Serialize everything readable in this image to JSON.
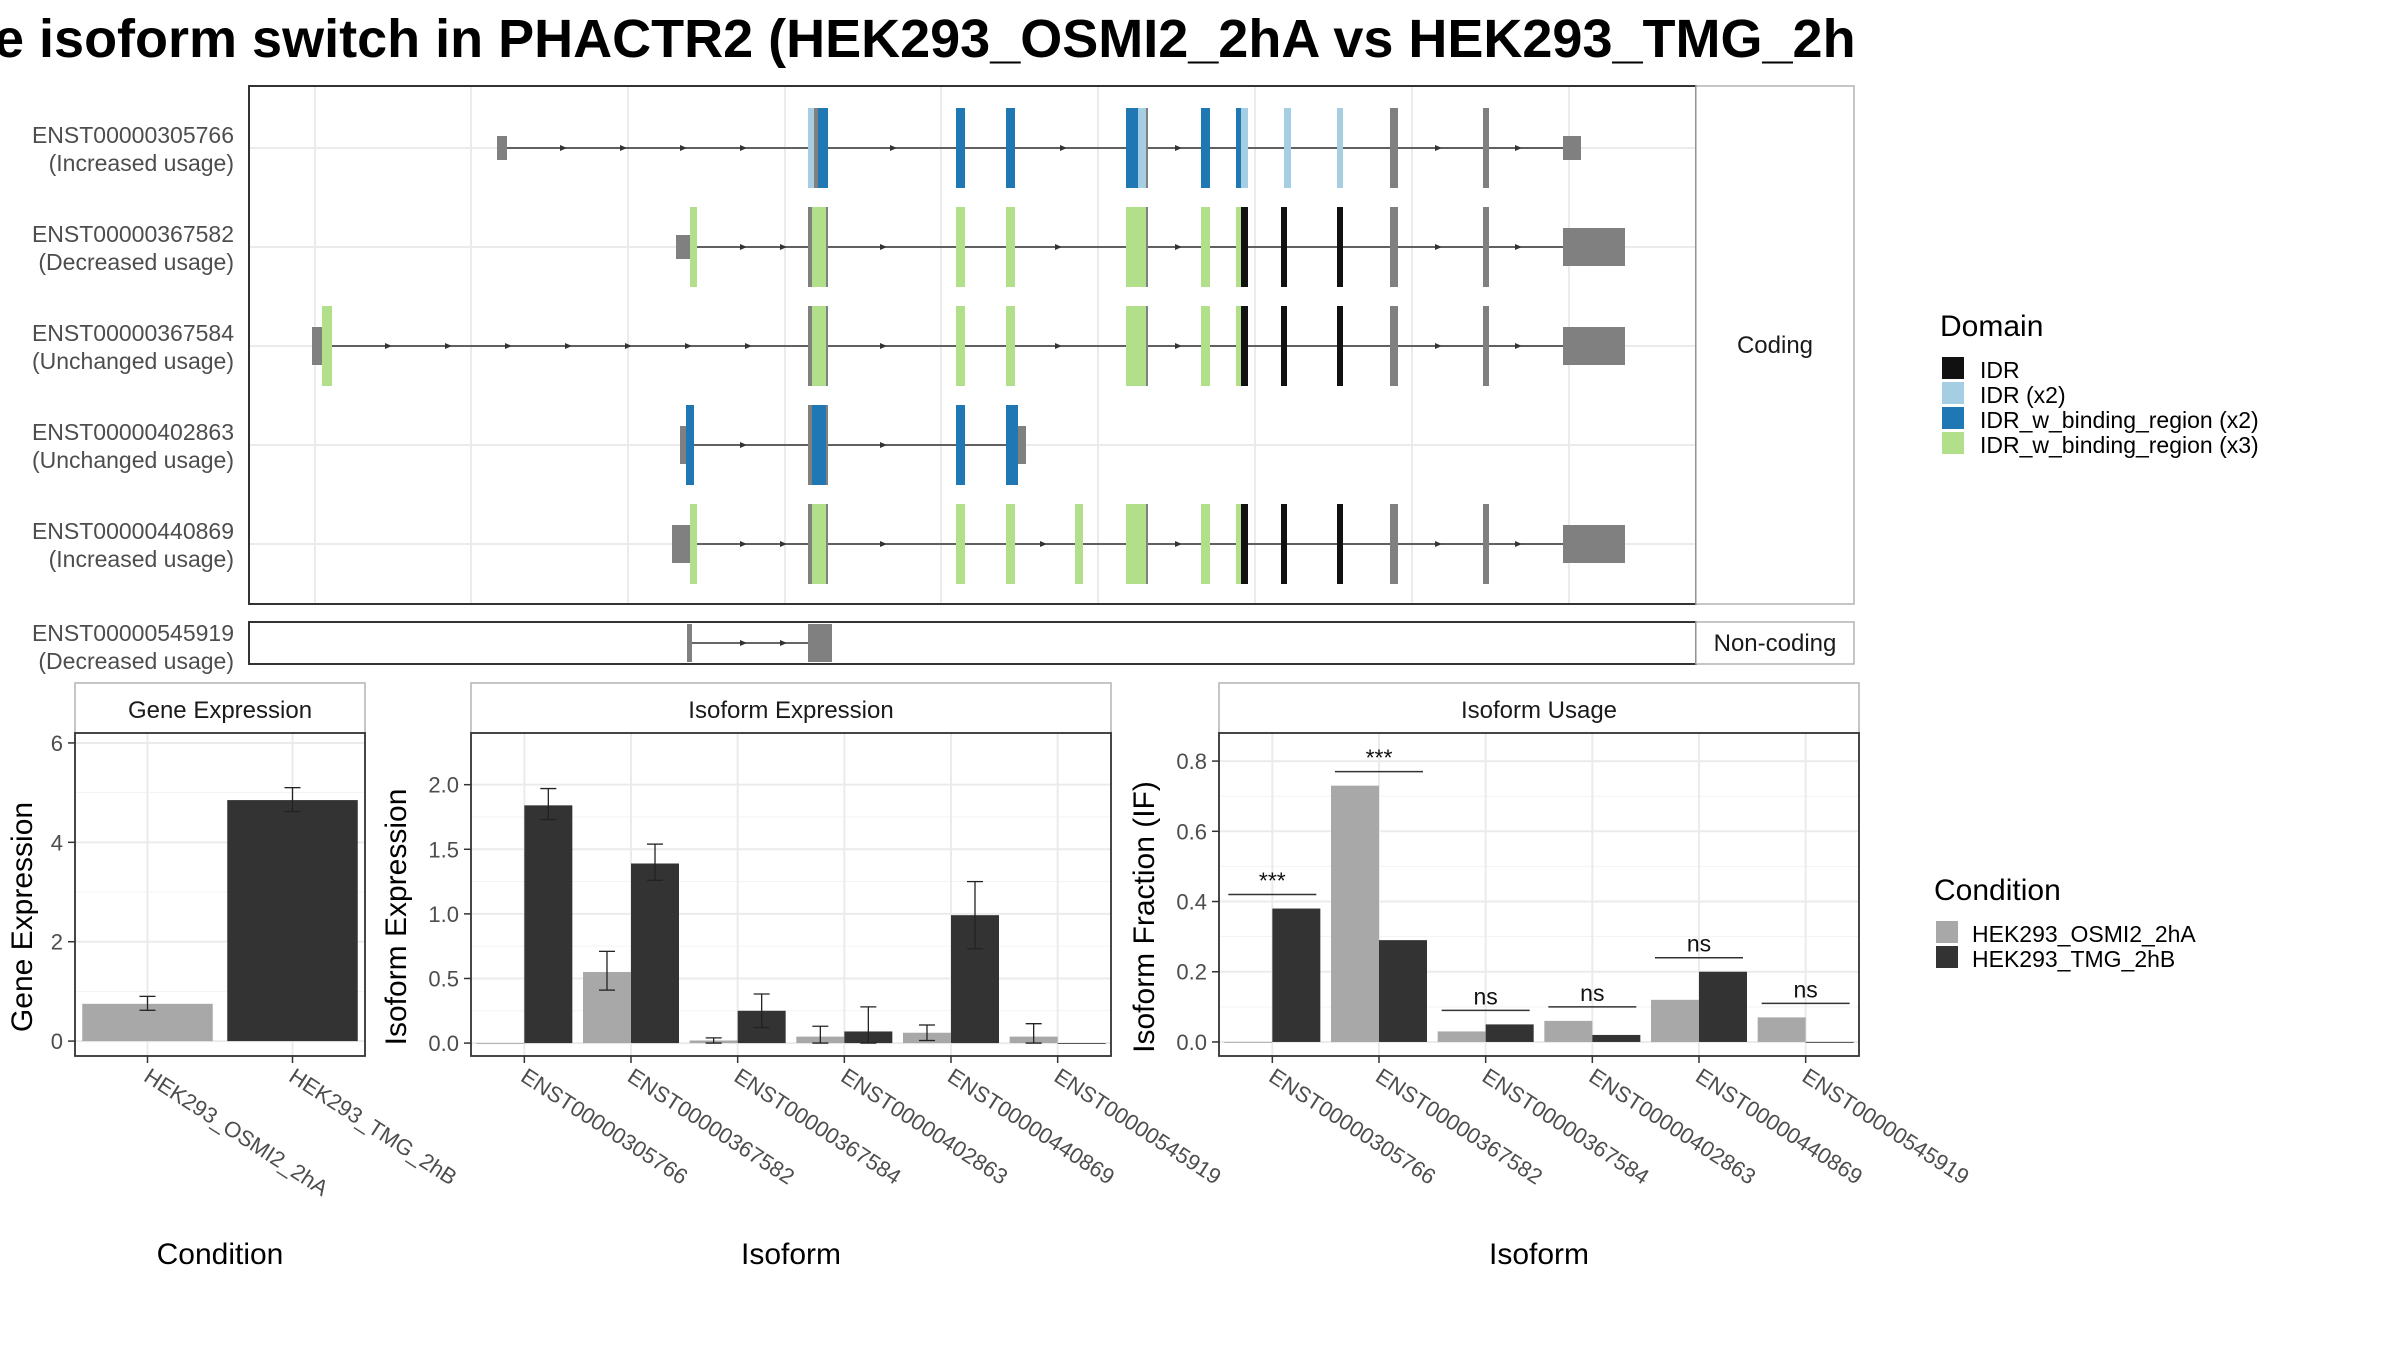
{
  "title": "e isoform switch in PHACTR2 (HEK293_OSMI2_2hA vs HEK293_TMG_2h",
  "colors": {
    "cond_a": "#a8a8a8",
    "cond_b": "#333333",
    "exon": "#808080",
    "idr": "#111111",
    "idr_x2": "#a6cee3",
    "idr_w_binding_region_x2": "#1f78b4",
    "idr_w_binding_region_x3": "#b2df8a"
  },
  "transcripts_panel": {
    "coding_label": "Coding",
    "noncoding_label": "Non-coding",
    "transcripts": [
      {
        "id": "ENST00000305766",
        "usage": "(Increased usage)"
      },
      {
        "id": "ENST00000367582",
        "usage": "(Decreased usage)"
      },
      {
        "id": "ENST00000367584",
        "usage": "(Unchanged usage)"
      },
      {
        "id": "ENST00000402863",
        "usage": "(Unchanged usage)"
      },
      {
        "id": "ENST00000440869",
        "usage": "(Increased usage)"
      },
      {
        "id": "ENST00000545919",
        "usage": "(Decreased usage)"
      }
    ]
  },
  "domain_legend": {
    "title": "Domain",
    "items": [
      "IDR",
      "IDR (x2)",
      "IDR_w_binding_region (x2)",
      "IDR_w_binding_region (x3)"
    ]
  },
  "condition_legend": {
    "title": "Condition",
    "items": [
      "HEK293_OSMI2_2hA",
      "HEK293_TMG_2hB"
    ]
  },
  "chart_data": [
    {
      "type": "bar",
      "title": "Gene Expression",
      "xlabel": "Condition",
      "ylabel": "Gene Expression",
      "categories": [
        "HEK293_OSMI2_2hA",
        "HEK293_TMG_2hB"
      ],
      "values": [
        0.75,
        4.85
      ],
      "errors": [
        [
          0.62,
          0.9
        ],
        [
          4.62,
          5.1
        ]
      ],
      "ylim": [
        -0.3,
        6.2
      ],
      "yticks": [
        "0",
        "2",
        "4",
        "6"
      ],
      "grid": true
    },
    {
      "type": "bar",
      "title": "Isoform Expression",
      "xlabel": "Isoform",
      "ylabel": "Isoform Expression",
      "categories": [
        "ENST00000305766",
        "ENST00000367582",
        "ENST00000367584",
        "ENST00000402863",
        "ENST00000440869",
        "ENST00000545919"
      ],
      "series": [
        {
          "name": "HEK293_OSMI2_2hA",
          "values": [
            0.0,
            0.55,
            0.02,
            0.05,
            0.08,
            0.05
          ],
          "errors": [
            [
              0.0,
              0.0
            ],
            [
              0.41,
              0.71
            ],
            [
              0.0,
              0.04
            ],
            [
              0.0,
              0.13
            ],
            [
              0.02,
              0.14
            ],
            [
              0.0,
              0.15
            ]
          ]
        },
        {
          "name": "HEK293_TMG_2hB",
          "values": [
            1.84,
            1.39,
            0.25,
            0.09,
            0.99,
            0.0
          ],
          "errors": [
            [
              1.73,
              1.97
            ],
            [
              1.26,
              1.54
            ],
            [
              0.12,
              0.38
            ],
            [
              0.0,
              0.28
            ],
            [
              0.73,
              1.25
            ],
            [
              0.0,
              0.0
            ]
          ]
        }
      ],
      "ylim": [
        -0.1,
        2.4
      ],
      "yticks": [
        "0.0",
        "0.5",
        "1.0",
        "1.5",
        "2.0"
      ],
      "grid": true
    },
    {
      "type": "bar",
      "title": "Isoform Usage",
      "xlabel": "Isoform",
      "ylabel": "Isoform Fraction (IF)",
      "categories": [
        "ENST00000305766",
        "ENST00000367582",
        "ENST00000367584",
        "ENST00000402863",
        "ENST00000440869",
        "ENST00000545919"
      ],
      "series": [
        {
          "name": "HEK293_OSMI2_2hA",
          "values": [
            0.0,
            0.73,
            0.03,
            0.06,
            0.12,
            0.07
          ]
        },
        {
          "name": "HEK293_TMG_2hB",
          "values": [
            0.38,
            0.29,
            0.05,
            0.02,
            0.2,
            0.0
          ]
        }
      ],
      "significance": [
        "***",
        "***",
        "ns",
        "ns",
        "ns",
        "ns"
      ],
      "ylim": [
        -0.04,
        0.88
      ],
      "yticks": [
        "0.0",
        "0.2",
        "0.4",
        "0.6",
        "0.8"
      ],
      "grid": true
    }
  ]
}
